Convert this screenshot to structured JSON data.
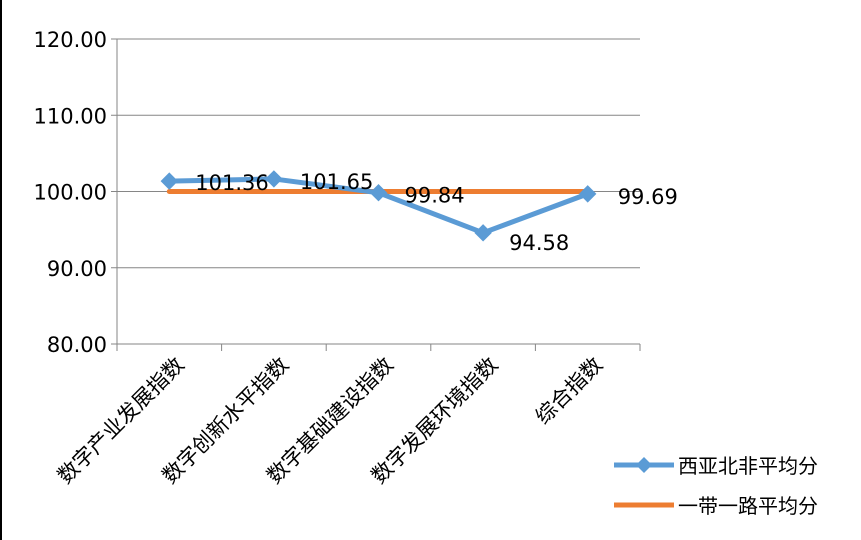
{
  "chart_data": {
    "type": "line",
    "title": "",
    "xlabel": "",
    "ylabel": "",
    "categories": [
      "数字产业发展指数",
      "数字创新水平指数",
      "数字基础建设指数",
      "数字发展环境指数",
      "综合指数"
    ],
    "ylim": [
      80,
      120
    ],
    "yticks": [
      "120.00",
      "110.00",
      "100.00",
      "90.00",
      "80.00"
    ],
    "grid": true,
    "legend_position": "bottom-right",
    "series": [
      {
        "name": "西亚北非平均分",
        "values": [
          101.36,
          101.65,
          99.84,
          94.58,
          99.69
        ],
        "data_labels": [
          "101.36",
          "101.65",
          "99.84",
          "94.58",
          "99.69"
        ],
        "color": "#5B9BD5",
        "marker": "diamond"
      },
      {
        "name": "一带一路平均分",
        "values": [
          100,
          100,
          100,
          100,
          100
        ],
        "color": "#ED7D31",
        "marker": "none"
      }
    ]
  }
}
